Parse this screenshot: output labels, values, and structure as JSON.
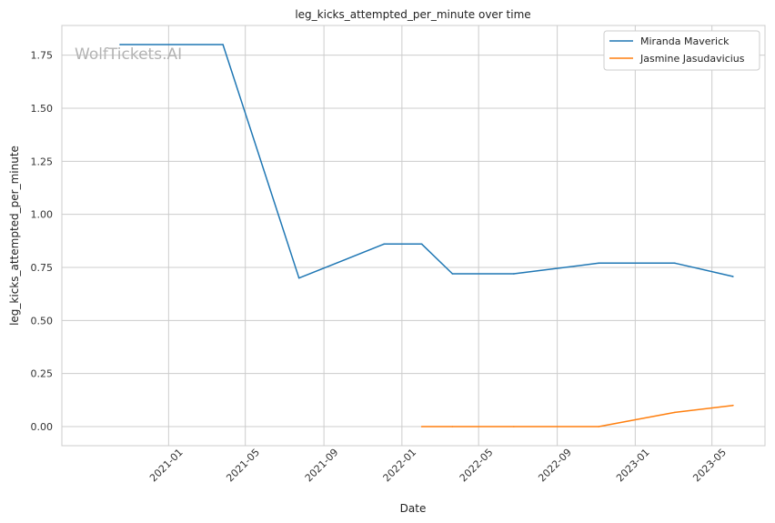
{
  "chart_data": {
    "type": "line",
    "title": "leg_kicks_attempted_per_minute over time",
    "xlabel": "Date",
    "ylabel": "leg_kicks_attempted_per_minute",
    "ylim": [
      -0.09,
      1.89
    ],
    "xlim": [
      "2020-07-18",
      "2023-07-23"
    ],
    "grid": true,
    "legend_position": "top-right",
    "x_ticks": [
      "2021-01",
      "2021-05",
      "2021-09",
      "2022-01",
      "2022-05",
      "2022-09",
      "2023-01",
      "2023-05"
    ],
    "y_ticks": [
      "0.00",
      "0.25",
      "0.50",
      "0.75",
      "1.00",
      "1.25",
      "1.50",
      "1.75"
    ],
    "series": [
      {
        "name": "Miranda Maverick",
        "color": "#1f77b4",
        "x": [
          "2020-10-17",
          "2021-03-27",
          "2021-07-24",
          "2021-12-04",
          "2022-02-01",
          "2022-03-21",
          "2022-06-25",
          "2022-11-05",
          "2023-03-04",
          "2023-06-03"
        ],
        "y": [
          1.8,
          1.8,
          0.7,
          0.86,
          0.86,
          0.72,
          0.72,
          0.77,
          0.77,
          0.707
        ]
      },
      {
        "name": "Jasmine Jasudavicius",
        "color": "#ff7f0e",
        "x": [
          "2022-02-01",
          "2022-03-21",
          "2022-06-25",
          "2022-11-05",
          "2023-03-04",
          "2023-06-03"
        ],
        "y": [
          0.0,
          0.0,
          0.0,
          0.0,
          0.067,
          0.1
        ]
      }
    ]
  },
  "watermark": "WolfTickets.AI"
}
